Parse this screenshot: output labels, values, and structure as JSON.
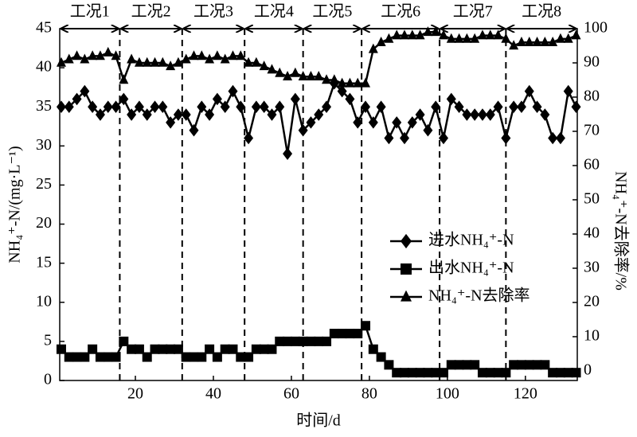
{
  "chart_data": {
    "type": "line",
    "xlabel": "时间/d",
    "ylabel": "NH₄⁺-N/(mg·L⁻¹)",
    "y2label": "NH₄⁺-N去除率/%",
    "xlim": [
      0.6,
      133.3
    ],
    "xticks": [
      20,
      40,
      60,
      80,
      100,
      120
    ],
    "ylim": [
      0,
      45
    ],
    "yticks": [
      0,
      5,
      10,
      15,
      20,
      25,
      30,
      35,
      40,
      45
    ],
    "y2lim": [
      -2.8,
      100
    ],
    "y2ticks": [
      0,
      10,
      20,
      30,
      40,
      50,
      60,
      70,
      80,
      90,
      100
    ],
    "phase_labels": [
      "工况1",
      "工况2",
      "工况3",
      "工况4",
      "工况5",
      "工况6",
      "工况7",
      "工况8"
    ],
    "phase_boundaries": [
      16,
      32,
      48,
      63,
      78,
      98,
      115
    ],
    "legend": "right",
    "x": [
      1,
      3,
      5,
      7,
      9,
      11,
      13,
      15,
      17,
      19,
      21,
      23,
      25,
      27,
      29,
      31,
      33,
      35,
      37,
      39,
      41,
      43,
      45,
      47,
      49,
      51,
      53,
      55,
      57,
      59,
      61,
      63,
      65,
      67,
      69,
      71,
      73,
      75,
      77,
      79,
      81,
      83,
      85,
      87,
      89,
      91,
      93,
      95,
      97,
      99,
      101,
      103,
      105,
      107,
      109,
      111,
      113,
      115,
      117,
      119,
      121,
      123,
      125,
      127,
      129,
      131,
      133
    ],
    "series": [
      {
        "name": "进水NH₄⁺-N",
        "color": "#000000",
        "marker": "diamond",
        "values": [
          35,
          35,
          36,
          37,
          35,
          34,
          35,
          35,
          36,
          34,
          35,
          34,
          35,
          35,
          33,
          34,
          34,
          32,
          35,
          34,
          36,
          35,
          37,
          35,
          31,
          35,
          35,
          34,
          35,
          29,
          36,
          32,
          33,
          34,
          35,
          38,
          37,
          36,
          33,
          35,
          33,
          35,
          31,
          33,
          31,
          33,
          34,
          32,
          35,
          31,
          36,
          35,
          34,
          34,
          34,
          34,
          35,
          31,
          35,
          35,
          37,
          35,
          34,
          31,
          31,
          37,
          35
        ]
      },
      {
        "name": "出水NH₄⁺-N",
        "color": "#000000",
        "marker": "square",
        "values": [
          4,
          3,
          3,
          3,
          4,
          3,
          3,
          3,
          5,
          4,
          4,
          3,
          4,
          4,
          4,
          4,
          3,
          3,
          3,
          4,
          3,
          4,
          4,
          3,
          3,
          4,
          4,
          4,
          5,
          5,
          5,
          5,
          5,
          5,
          5,
          6,
          6,
          6,
          6,
          7,
          4,
          3,
          2,
          1,
          1,
          1,
          1,
          1,
          1,
          1,
          2,
          2,
          2,
          2,
          1,
          1,
          1,
          1,
          2,
          2,
          2,
          2,
          2,
          1,
          1,
          1,
          1
        ]
      },
      {
        "name": "NH₄⁺-N去除率",
        "color": "#000000",
        "marker": "triangle",
        "axis": "y2",
        "values": [
          90,
          91,
          92,
          91,
          92,
          92,
          93,
          92,
          85,
          91,
          90,
          90,
          90,
          90,
          89,
          90,
          91,
          92,
          92,
          91,
          92,
          91,
          92,
          92,
          90,
          90,
          89,
          88,
          87,
          86,
          87,
          86,
          86,
          86,
          85,
          85,
          84,
          84,
          84,
          84,
          94,
          96,
          97,
          98,
          98,
          98,
          98,
          99,
          99,
          98,
          97,
          97,
          97,
          97,
          98,
          98,
          98,
          97,
          95,
          96,
          96,
          96,
          96,
          96,
          97,
          97,
          98
        ]
      }
    ]
  }
}
